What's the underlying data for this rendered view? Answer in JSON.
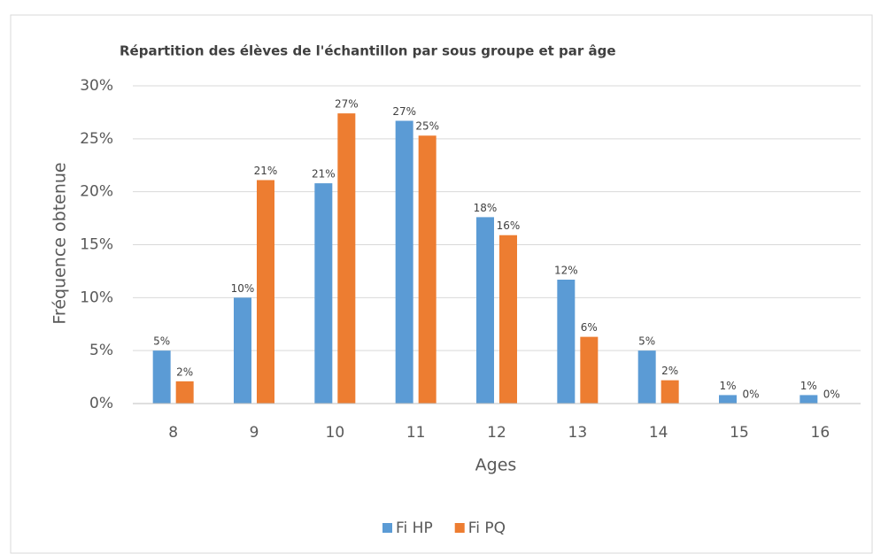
{
  "chart_data": {
    "type": "bar",
    "title": "Répartition des élèves de l'échantillon par  sous groupe et par âge",
    "x_label": "Ages",
    "y_label": "Fréquence obtenue",
    "categories": [
      "8",
      "9",
      "10",
      "11",
      "12",
      "13",
      "14",
      "15",
      "16"
    ],
    "series": [
      {
        "name": "Fi HP",
        "color": "#5b9bd5",
        "values": [
          5.0,
          10.0,
          20.8,
          26.7,
          17.6,
          11.7,
          5.0,
          0.8,
          0.8
        ],
        "value_labels": [
          "5%",
          "10%",
          "21%",
          "27%",
          "18%",
          "12%",
          "5%",
          "1%",
          "1%"
        ]
      },
      {
        "name": "Fi PQ",
        "color": "#ed7d31",
        "values": [
          2.1,
          21.1,
          27.4,
          25.3,
          15.9,
          6.3,
          2.2,
          0,
          0
        ],
        "value_labels": [
          "2%",
          "21%",
          "27%",
          "25%",
          "16%",
          "6%",
          "2%",
          "0%",
          "0%"
        ]
      }
    ],
    "ylim": [
      0,
      30
    ],
    "yticks": [
      {
        "value": 0,
        "label": "0%"
      },
      {
        "value": 5,
        "label": "5%"
      },
      {
        "value": 10,
        "label": "10%"
      },
      {
        "value": 15,
        "label": "15%"
      },
      {
        "value": 20,
        "label": "20%"
      },
      {
        "value": 25,
        "label": "25%"
      },
      {
        "value": 30,
        "label": "30%"
      }
    ],
    "grid": true,
    "legend": "bottom"
  }
}
